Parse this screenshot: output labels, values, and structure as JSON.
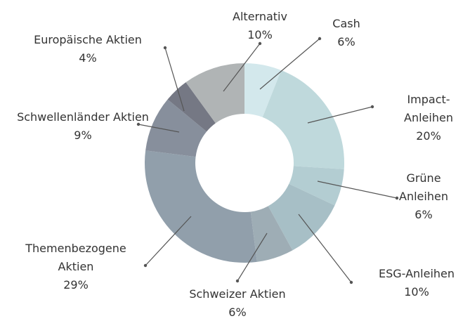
{
  "chart_data": {
    "type": "donut",
    "categories": [
      "Cash",
      "Impact-Anleihen",
      "Grüne Anleihen",
      "ESG-Anleihen",
      "Schweizer Aktien",
      "Themenbezogene Aktien",
      "Schwellenländer Aktien",
      "Europäische Aktien",
      "Alternativ"
    ],
    "values": [
      6,
      20,
      6,
      10,
      6,
      29,
      9,
      4,
      10
    ],
    "value_labels": [
      "6%",
      "20%",
      "6%",
      "10%",
      "6%",
      "29%",
      "9%",
      "4%",
      "10%"
    ],
    "colors": [
      "#d3e8ec",
      "#bfd9dc",
      "#b3cdd2",
      "#a7bfc6",
      "#9eadb5",
      "#919fab",
      "#878f9c",
      "#757884",
      "#b0b4b5"
    ]
  }
}
